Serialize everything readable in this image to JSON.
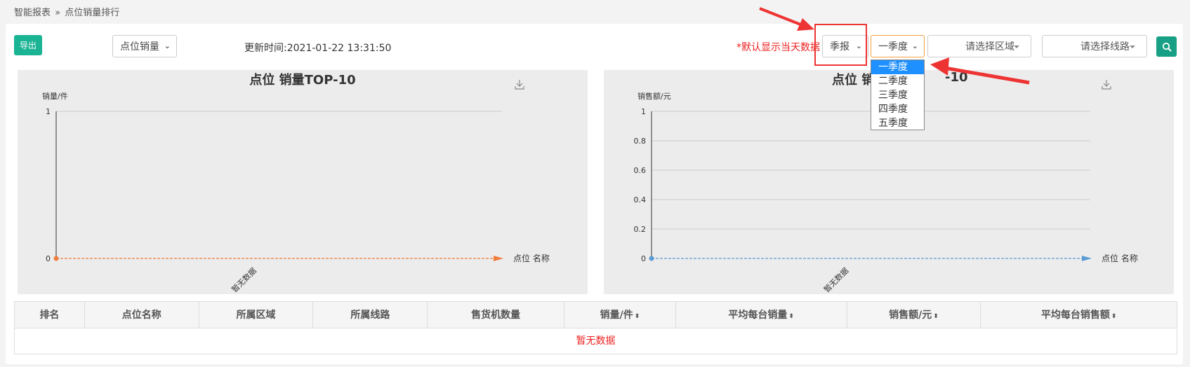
{
  "breadcrumb": {
    "root": "智能报表",
    "sep": "»",
    "current": "点位销量排行"
  },
  "toolbar": {
    "export_label": "导出",
    "metric_select": "点位销量",
    "update_time": "更新时间:2021-01-22 13:31:50",
    "note": "*默认显示当天数据",
    "period_select": "季报",
    "quarter_select": "一季度",
    "area_placeholder": "请选择区域",
    "route_placeholder": "请选择线路"
  },
  "quarter_options": [
    "一季度",
    "二季度",
    "三季度",
    "四季度",
    "五季度"
  ],
  "chart_data": [
    {
      "type": "line",
      "title": "点位 销量TOP-10",
      "ylabel": "销量/件",
      "xlabel": "点位 名称",
      "ylim": [
        0,
        1
      ],
      "yticks": [
        "0",
        "1"
      ],
      "categories": [
        "暂无数据"
      ],
      "values": [
        0
      ],
      "color": "#f07c3c"
    },
    {
      "type": "line",
      "title": "点位 销售额TOP-10",
      "title_visible": "点位 销",
      "title_visible_tail": "-10",
      "ylabel": "销售额/元",
      "xlabel": "点位 名称",
      "ylim": [
        0,
        1
      ],
      "yticks": [
        "0",
        "0.2",
        "0.4",
        "0.6",
        "0.8",
        "1"
      ],
      "categories": [
        "暂无数据"
      ],
      "values": [
        0
      ],
      "color": "#5b9bd5"
    }
  ],
  "table": {
    "columns": [
      "排名",
      "点位名称",
      "所属区域",
      "所属线路",
      "售货机数量",
      "销量/件",
      "平均每台销量",
      "销售额/元",
      "平均每台销售额"
    ],
    "empty_text": "暂无数据"
  },
  "colors": {
    "accent": "#1ab394",
    "warning": "#e22222",
    "highlight": "#1e90ff"
  }
}
